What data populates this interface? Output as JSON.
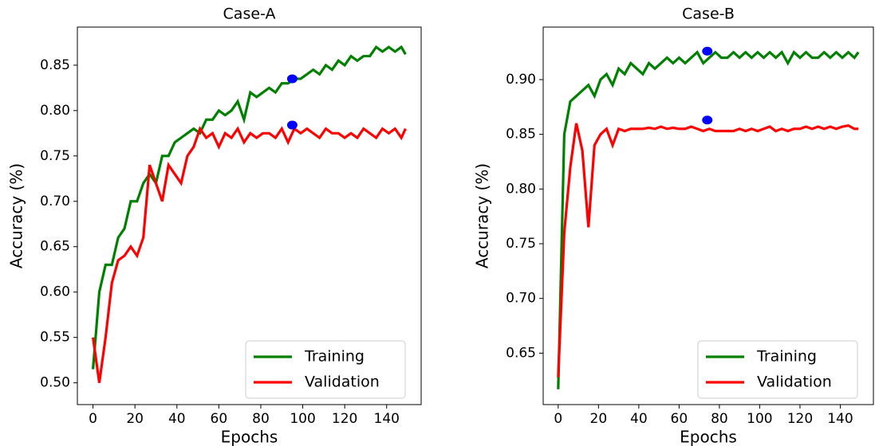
{
  "chart_data": [
    {
      "type": "line",
      "title": "Case-A",
      "xlabel": "Epochs",
      "ylabel": "Accuracy (%)",
      "x": [
        0,
        3,
        6,
        9,
        12,
        15,
        18,
        21,
        24,
        27,
        30,
        33,
        36,
        39,
        42,
        45,
        48,
        51,
        54,
        57,
        60,
        63,
        66,
        69,
        72,
        75,
        78,
        81,
        84,
        87,
        90,
        93,
        96,
        99,
        102,
        105,
        108,
        111,
        114,
        117,
        120,
        123,
        126,
        129,
        132,
        135,
        138,
        141,
        144,
        147,
        149
      ],
      "series": [
        {
          "name": "Training",
          "color": "#008000",
          "values": [
            0.515,
            0.6,
            0.63,
            0.63,
            0.66,
            0.67,
            0.7,
            0.7,
            0.72,
            0.73,
            0.72,
            0.75,
            0.75,
            0.765,
            0.77,
            0.775,
            0.78,
            0.775,
            0.79,
            0.79,
            0.8,
            0.795,
            0.8,
            0.81,
            0.79,
            0.82,
            0.815,
            0.82,
            0.825,
            0.82,
            0.83,
            0.83,
            0.835,
            0.835,
            0.84,
            0.845,
            0.84,
            0.85,
            0.845,
            0.855,
            0.85,
            0.86,
            0.855,
            0.86,
            0.86,
            0.87,
            0.865,
            0.87,
            0.865,
            0.87,
            0.862
          ]
        },
        {
          "name": "Validation",
          "color": "#ff0000",
          "values": [
            0.55,
            0.5,
            0.55,
            0.61,
            0.635,
            0.64,
            0.65,
            0.64,
            0.66,
            0.74,
            0.72,
            0.7,
            0.74,
            0.73,
            0.72,
            0.75,
            0.76,
            0.78,
            0.77,
            0.775,
            0.76,
            0.775,
            0.77,
            0.78,
            0.765,
            0.775,
            0.77,
            0.775,
            0.775,
            0.77,
            0.78,
            0.765,
            0.78,
            0.775,
            0.78,
            0.775,
            0.77,
            0.78,
            0.775,
            0.775,
            0.77,
            0.775,
            0.77,
            0.78,
            0.775,
            0.77,
            0.78,
            0.775,
            0.78,
            0.77,
            0.78
          ]
        }
      ],
      "points": {
        "color": "#0000ff",
        "x": [
          95,
          95
        ],
        "y": [
          0.835,
          0.784
        ]
      },
      "xlim": [
        -7.45,
        156.45
      ],
      "ylim": [
        0.476,
        0.892
      ],
      "xticks": [
        0,
        20,
        40,
        60,
        80,
        100,
        120,
        140
      ],
      "yticks": [
        {
          "value": 0.5,
          "label": "0.50"
        },
        0.55,
        {
          "value": 0.6,
          "label": "0.60"
        },
        0.65,
        {
          "value": 0.7,
          "label": "0.70"
        },
        0.75,
        {
          "value": 0.8,
          "label": "0.80"
        },
        0.85
      ],
      "legend": "lower right"
    },
    {
      "type": "line",
      "title": "Case-B",
      "xlabel": "Epochs",
      "ylabel": "Accuracy (%)",
      "x": [
        0,
        3,
        6,
        9,
        12,
        15,
        18,
        21,
        24,
        27,
        30,
        33,
        36,
        39,
        42,
        45,
        48,
        51,
        54,
        57,
        60,
        63,
        66,
        69,
        72,
        75,
        78,
        81,
        84,
        87,
        90,
        93,
        96,
        99,
        102,
        105,
        108,
        111,
        114,
        117,
        120,
        123,
        126,
        129,
        132,
        135,
        138,
        141,
        144,
        147,
        149
      ],
      "series": [
        {
          "name": "Training",
          "color": "#008000",
          "values": [
            0.617,
            0.85,
            0.88,
            0.885,
            0.89,
            0.895,
            0.885,
            0.9,
            0.905,
            0.895,
            0.91,
            0.905,
            0.915,
            0.91,
            0.905,
            0.915,
            0.91,
            0.915,
            0.92,
            0.915,
            0.92,
            0.915,
            0.92,
            0.925,
            0.915,
            0.92,
            0.925,
            0.92,
            0.92,
            0.925,
            0.92,
            0.925,
            0.92,
            0.925,
            0.92,
            0.925,
            0.92,
            0.925,
            0.915,
            0.925,
            0.92,
            0.925,
            0.92,
            0.92,
            0.925,
            0.92,
            0.925,
            0.92,
            0.925,
            0.92,
            0.925
          ]
        },
        {
          "name": "Validation",
          "color": "#ff0000",
          "values": [
            0.628,
            0.76,
            0.82,
            0.86,
            0.835,
            0.765,
            0.84,
            0.85,
            0.855,
            0.84,
            0.855,
            0.853,
            0.855,
            0.855,
            0.855,
            0.856,
            0.855,
            0.857,
            0.855,
            0.856,
            0.855,
            0.855,
            0.857,
            0.855,
            0.853,
            0.855,
            0.853,
            0.853,
            0.853,
            0.853,
            0.855,
            0.853,
            0.855,
            0.853,
            0.855,
            0.857,
            0.853,
            0.855,
            0.853,
            0.855,
            0.855,
            0.857,
            0.855,
            0.857,
            0.855,
            0.857,
            0.855,
            0.857,
            0.858,
            0.855,
            0.855
          ]
        }
      ],
      "points": {
        "color": "#0000ff",
        "x": [
          74,
          74
        ],
        "y": [
          0.926,
          0.863
        ]
      },
      "xlim": [
        -7.45,
        156.45
      ],
      "ylim": [
        0.603,
        0.948
      ],
      "xticks": [
        0,
        20,
        40,
        60,
        80,
        100,
        120,
        140
      ],
      "yticks": [
        0.65,
        {
          "value": 0.7,
          "label": "0.70"
        },
        0.75,
        {
          "value": 0.8,
          "label": "0.80"
        },
        0.85,
        {
          "value": 0.9,
          "label": "0.90"
        }
      ],
      "legend": "lower right"
    }
  ]
}
